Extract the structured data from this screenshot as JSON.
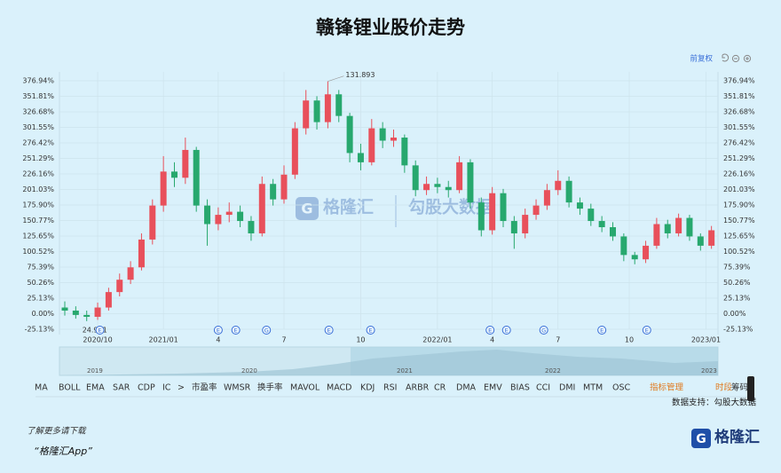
{
  "chart_data": {
    "type": "candlestick",
    "title": "赣锋锂业股价走势",
    "adjust_label": "前复权",
    "high_label": "131.893",
    "low_label": "24.951",
    "up_color": "#e8505b",
    "down_color": "#27a86e",
    "ylim": [
      -25.13,
      376.94
    ],
    "yticks": [
      {
        "value": 376.94,
        "label": "376.94%"
      },
      {
        "value": 351.81,
        "label": "351.81%"
      },
      {
        "value": 326.68,
        "label": "326.68%"
      },
      {
        "value": 301.55,
        "label": "301.55%"
      },
      {
        "value": 276.42,
        "label": "276.42%"
      },
      {
        "value": 251.29,
        "label": "251.29%"
      },
      {
        "value": 226.16,
        "label": "226.16%"
      },
      {
        "value": 201.03,
        "label": "201.03%"
      },
      {
        "value": 175.9,
        "label": "175.90%"
      },
      {
        "value": 150.77,
        "label": "150.77%"
      },
      {
        "value": 125.65,
        "label": "125.65%"
      },
      {
        "value": 100.52,
        "label": "100.52%"
      },
      {
        "value": 75.39,
        "label": "75.39%"
      },
      {
        "value": 50.26,
        "label": "50.26%"
      },
      {
        "value": 25.13,
        "label": "25.13%"
      },
      {
        "value": 0,
        "label": "0.00%"
      },
      {
        "value": -25.13,
        "label": "-25.13%"
      }
    ],
    "xticks": [
      {
        "value": 3,
        "label": "2020/10"
      },
      {
        "value": 9,
        "label": "2021/01"
      },
      {
        "value": 14,
        "label": "4"
      },
      {
        "value": 20,
        "label": "7"
      },
      {
        "value": 27,
        "label": "10"
      },
      {
        "value": 34,
        "label": "2022/01"
      },
      {
        "value": 39,
        "label": "4"
      },
      {
        "value": 45,
        "label": "7"
      },
      {
        "value": 51.5,
        "label": "10"
      },
      {
        "value": 58.5,
        "label": "2023/01"
      }
    ],
    "open": [
      10,
      5,
      -2,
      -5,
      10,
      35,
      55,
      75,
      120,
      175,
      230,
      220,
      265,
      175,
      145,
      160,
      165,
      150,
      130,
      210,
      185,
      225,
      300,
      345,
      310,
      355,
      320,
      260,
      245,
      300,
      280,
      285,
      240,
      200,
      210,
      205,
      200,
      245,
      180,
      135,
      195,
      150,
      130,
      160,
      175,
      200,
      215,
      180,
      170,
      150,
      140,
      125,
      95,
      88,
      110,
      145,
      130,
      155,
      125,
      110
    ],
    "close": [
      5,
      -2,
      -5,
      10,
      35,
      55,
      75,
      120,
      175,
      230,
      220,
      265,
      175,
      145,
      160,
      165,
      150,
      130,
      210,
      185,
      225,
      300,
      345,
      310,
      355,
      320,
      260,
      245,
      300,
      280,
      285,
      240,
      200,
      210,
      205,
      200,
      245,
      180,
      135,
      195,
      150,
      130,
      160,
      175,
      200,
      215,
      180,
      170,
      150,
      140,
      125,
      95,
      88,
      110,
      145,
      130,
      155,
      125,
      110,
      135
    ],
    "high": [
      20,
      12,
      5,
      18,
      42,
      65,
      85,
      130,
      185,
      255,
      245,
      285,
      270,
      185,
      172,
      180,
      175,
      158,
      222,
      218,
      240,
      310,
      362,
      352,
      376,
      362,
      325,
      275,
      315,
      310,
      298,
      290,
      248,
      222,
      220,
      215,
      255,
      250,
      188,
      205,
      202,
      158,
      170,
      185,
      210,
      232,
      222,
      188,
      178,
      158,
      148,
      130,
      100,
      118,
      155,
      152,
      162,
      160,
      130,
      142
    ],
    "low": [
      -3,
      -8,
      -12,
      -10,
      5,
      28,
      48,
      70,
      112,
      165,
      205,
      210,
      165,
      110,
      135,
      148,
      140,
      118,
      125,
      175,
      178,
      218,
      290,
      298,
      300,
      310,
      245,
      232,
      240,
      268,
      270,
      228,
      190,
      192,
      195,
      188,
      195,
      170,
      125,
      128,
      140,
      105,
      122,
      152,
      168,
      192,
      172,
      160,
      142,
      132,
      118,
      85,
      80,
      82,
      105,
      122,
      125,
      118,
      102,
      105
    ],
    "events": [
      {
        "label": "E",
        "x": 3.2
      },
      {
        "label": "E",
        "x": 14
      },
      {
        "label": "E",
        "x": 15.6
      },
      {
        "label": "G",
        "x": 18.4
      },
      {
        "label": "E",
        "x": 24.1
      },
      {
        "label": "E",
        "x": 27.9
      },
      {
        "label": "E",
        "x": 38.8
      },
      {
        "label": "E",
        "x": 40.3
      },
      {
        "label": "G",
        "x": 43.7
      },
      {
        "label": "E",
        "x": 49
      },
      {
        "label": "E",
        "x": 53.1
      }
    ],
    "navigator_years": [
      "2019",
      "2020",
      "2021",
      "2022",
      "2023"
    ],
    "indicators": [
      "MA",
      "BOLL",
      "EMA",
      "SAR",
      "CDP",
      "IC",
      ">",
      "市盈率",
      "WMSR",
      "换手率",
      "MAVOL",
      "MACD",
      "KDJ",
      "RSI",
      "ARBR",
      "CR",
      "DMA",
      "EMV",
      "BIAS",
      "CCI",
      "DMI",
      "MTM",
      "OSC"
    ],
    "indicator_manage": "指标管理",
    "period": "时段",
    "chips": "筹码",
    "source": "数据支持：勾股大数据",
    "watermark_1": "格隆汇",
    "watermark_2": "勾股大数据",
    "footer_line1": "了解更多请下载",
    "footer_line2": "“格隆汇App”",
    "logo": "格隆汇"
  }
}
